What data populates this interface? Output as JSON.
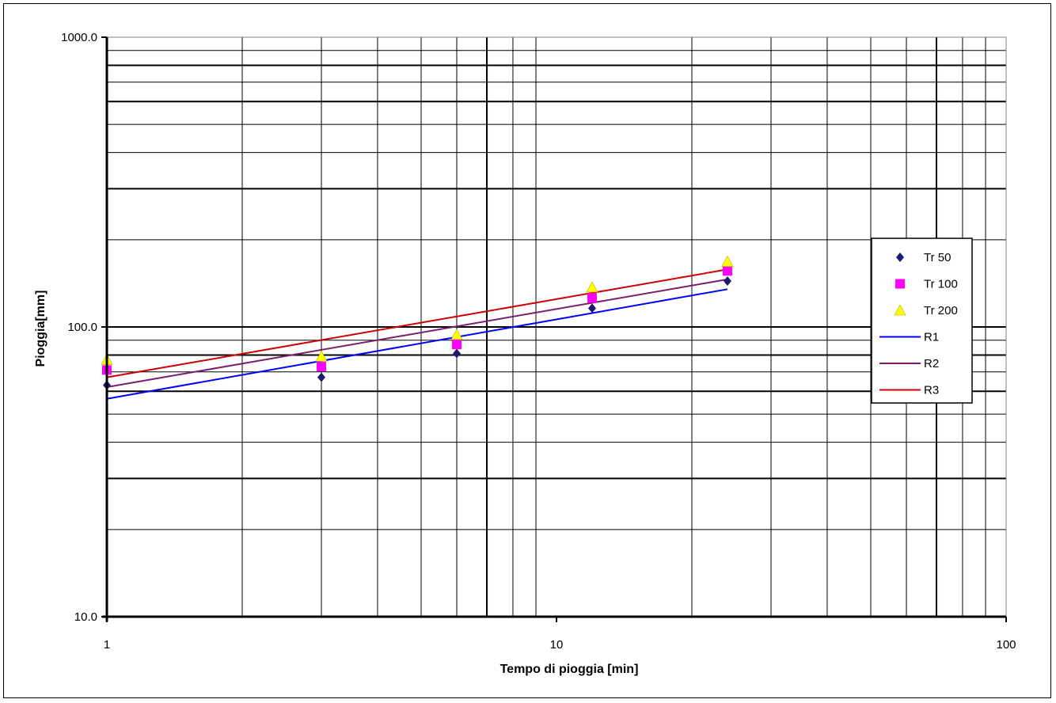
{
  "chart_data": {
    "type": "scatter",
    "xlabel": "Tempo di pioggia [min]",
    "ylabel": "Pioggia[mm]",
    "x_scale": "log",
    "y_scale": "log",
    "xlim": [
      1,
      100
    ],
    "ylim": [
      10,
      1000
    ],
    "x_ticks": [
      "1",
      "10",
      "100"
    ],
    "y_ticks": [
      "10.0",
      "100.0",
      "1000.0"
    ],
    "grid": true,
    "legend_position": "right",
    "series": [
      {
        "name": "Tr 50",
        "kind": "points",
        "marker": "diamond",
        "color": "#1a1a70",
        "x": [
          1,
          3,
          6,
          12,
          24
        ],
        "y": [
          63,
          67,
          81,
          116,
          144
        ]
      },
      {
        "name": "Tr 100",
        "kind": "points",
        "marker": "square",
        "color": "#ff00ff",
        "x": [
          1,
          3,
          6,
          12,
          24
        ],
        "y": [
          71,
          73,
          87,
          126,
          156
        ]
      },
      {
        "name": "Tr 200",
        "kind": "points",
        "marker": "triangle",
        "color": "#ffff00",
        "x": [
          1,
          3,
          6,
          12,
          24
        ],
        "y": [
          77,
          79,
          94,
          137,
          168
        ]
      },
      {
        "name": "R1",
        "kind": "line",
        "color": "#0000ff",
        "x": [
          1,
          24
        ],
        "y": [
          56.5,
          135
        ]
      },
      {
        "name": "R2",
        "kind": "line",
        "color": "#7a1e6e",
        "x": [
          1,
          24
        ],
        "y": [
          62,
          146
        ]
      },
      {
        "name": "R3",
        "kind": "line",
        "color": "#cc0000",
        "x": [
          1,
          24
        ],
        "y": [
          67,
          158
        ]
      }
    ]
  }
}
